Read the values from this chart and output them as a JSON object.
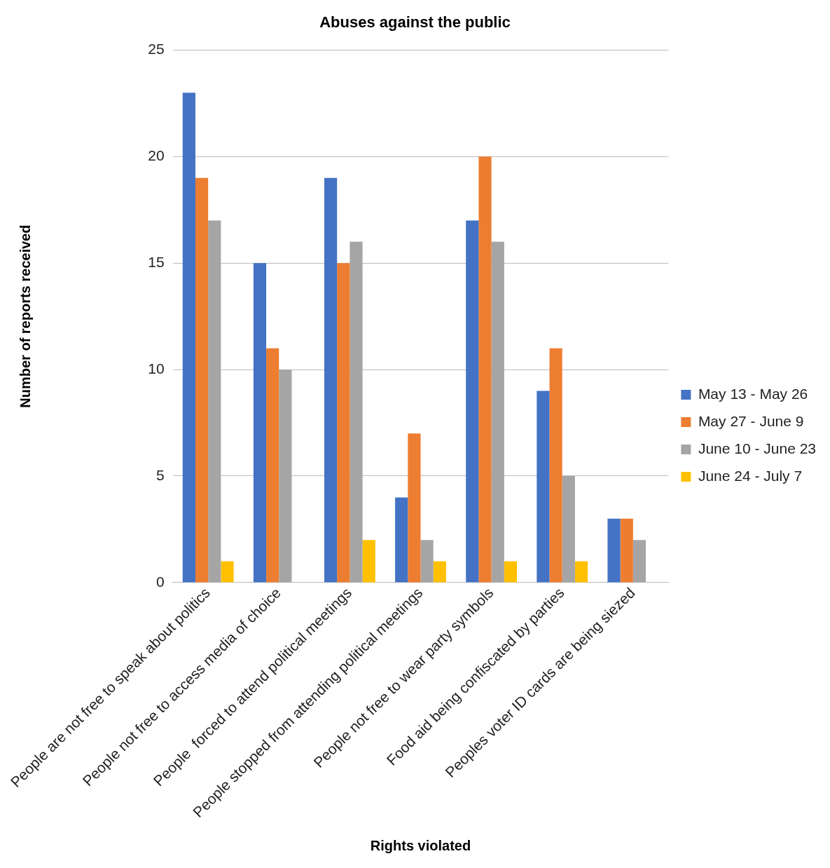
{
  "chart_data": {
    "type": "bar",
    "title": "Abuses against the public",
    "xlabel": "Rights violated",
    "ylabel": "Number of reports received",
    "categories": [
      "People are not free to speak about politics",
      "People not free to access media of choice",
      "People  forced to attend political meetings",
      "People stopped from attending political meetings",
      "People not free to wear party symbols",
      "Food aid being confiscated by parties",
      "Peoples voter ID cards are being siezed"
    ],
    "series": [
      {
        "name": "May 13 - May 26",
        "color": "#4472c4",
        "values": [
          23,
          15,
          19,
          4,
          17,
          9,
          3
        ]
      },
      {
        "name": "May 27 - June 9",
        "color": "#ed7d31",
        "values": [
          19,
          11,
          15,
          7,
          20,
          11,
          3
        ]
      },
      {
        "name": "June 10 - June 23",
        "color": "#a5a5a5",
        "values": [
          17,
          10,
          16,
          2,
          16,
          5,
          2
        ]
      },
      {
        "name": "June 24 - July 7",
        "color": "#ffc000",
        "values": [
          1,
          0,
          2,
          1,
          1,
          1,
          0
        ]
      }
    ],
    "ylim": [
      0,
      25
    ],
    "yticks": [
      0,
      5,
      10,
      15,
      20,
      25
    ],
    "grid": "y",
    "legend": "right"
  }
}
